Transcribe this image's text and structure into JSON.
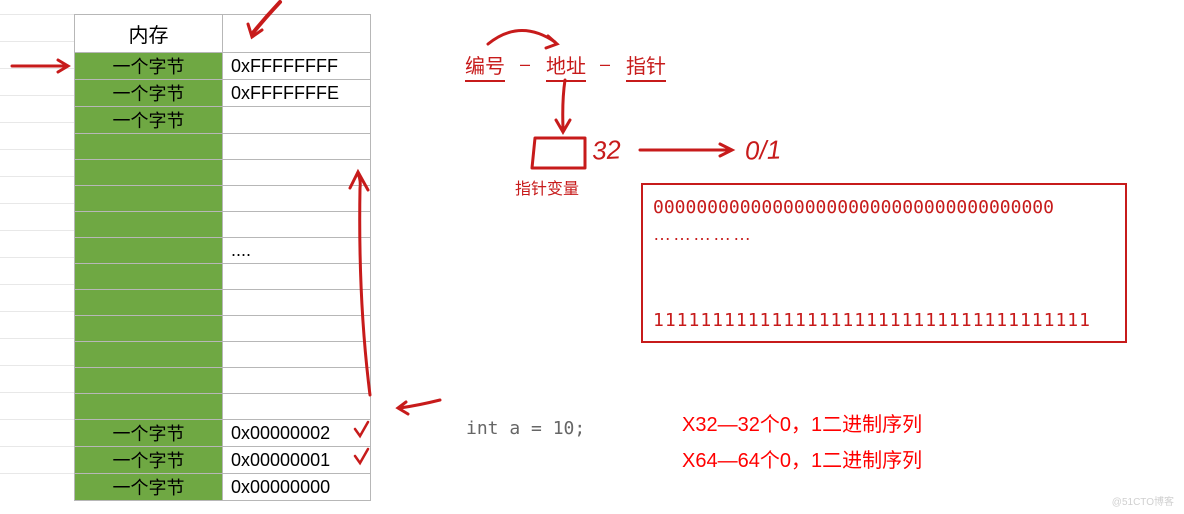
{
  "memory": {
    "header": "内存",
    "rows": [
      {
        "byte": "一个字节",
        "addr": "0xFFFFFFFF"
      },
      {
        "byte": "一个字节",
        "addr": "0xFFFFFFFE"
      },
      {
        "byte": "一个字节",
        "addr": ""
      },
      {
        "byte": "",
        "addr": ""
      },
      {
        "byte": "",
        "addr": ""
      },
      {
        "byte": "",
        "addr": ""
      },
      {
        "byte": "",
        "addr": ""
      },
      {
        "byte": "",
        "addr": "...."
      },
      {
        "byte": "",
        "addr": ""
      },
      {
        "byte": "",
        "addr": ""
      },
      {
        "byte": "",
        "addr": ""
      },
      {
        "byte": "",
        "addr": ""
      },
      {
        "byte": "",
        "addr": ""
      },
      {
        "byte": "",
        "addr": ""
      },
      {
        "byte": "一个字节",
        "addr": "0x00000002"
      },
      {
        "byte": "一个字节",
        "addr": "0x00000001"
      },
      {
        "byte": "一个字节",
        "addr": "0x00000000"
      }
    ]
  },
  "concepts": {
    "word1": "编号",
    "word2": "地址",
    "word3": "指针",
    "ptr_var": "指针变量",
    "num": "32",
    "zero_one": "0/1"
  },
  "bitbox": {
    "zeros": "0000000000000000000000000000000000000",
    "dots": "……………",
    "ones": "1111111111111111111111111111111111111"
  },
  "code": "int a = 10;",
  "sequences": {
    "x32": "X32—32个0，1二进制序列",
    "x64": "X64—64个0，1二进制序列"
  },
  "watermark": "@51CTO博客",
  "colors": {
    "red": "#c71b1b",
    "green": "#6fa843",
    "grid": "#b7b7b7"
  }
}
